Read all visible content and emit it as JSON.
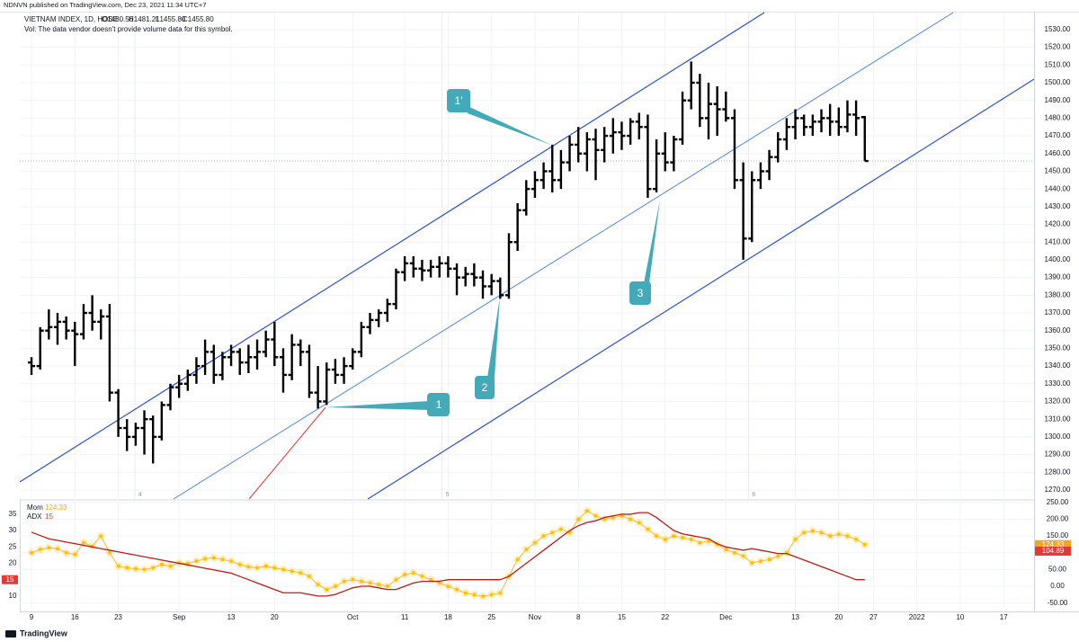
{
  "header": "NDNVN published on TradingView.com, Dec 23, 2021 11:34 UTC+7",
  "footer": "TradingView",
  "chart_data": [
    {
      "type": "ohlc",
      "title": "VIETNAM INDEX, 1D, HOSE",
      "ohlc_labels": [
        "O1480.56",
        "H1481.21",
        "L1455.80",
        "C1455.80"
      ],
      "note": "Vol: The data vendor doesn't provide volume data for this symbol.",
      "color": "#000000",
      "x": [
        0,
        1,
        2,
        3,
        4,
        5,
        6,
        7,
        8,
        9,
        10,
        11,
        12,
        13,
        14,
        15,
        16,
        17,
        18,
        19,
        20,
        21,
        22,
        23,
        24,
        25,
        26,
        27,
        28,
        29,
        30,
        31,
        32,
        33,
        34,
        35,
        36,
        37,
        38,
        39,
        40,
        41,
        42,
        43,
        44,
        45,
        46,
        47,
        48,
        49,
        50,
        51,
        52,
        53,
        54,
        55,
        56,
        57,
        58,
        59,
        60,
        61,
        62,
        63,
        64,
        65,
        66,
        67,
        68,
        69,
        70,
        71,
        72,
        73,
        74,
        75,
        76,
        77,
        78,
        79,
        80,
        81,
        82,
        83,
        84,
        85,
        86,
        87,
        88,
        89,
        90,
        91,
        92,
        93,
        94,
        95,
        96
      ],
      "open": [
        1342,
        1340,
        1360,
        1362,
        1365,
        1360,
        1358,
        1370,
        1365,
        1368,
        1325,
        1305,
        1300,
        1305,
        1310,
        1300,
        1318,
        1328,
        1330,
        1335,
        1340,
        1348,
        1335,
        1345,
        1348,
        1342,
        1345,
        1348,
        1355,
        1345,
        1335,
        1352,
        1348,
        1325,
        1320,
        1338,
        1335,
        1340,
        1348,
        1362,
        1366,
        1370,
        1375,
        1393,
        1398,
        1395,
        1394,
        1396,
        1398,
        1395,
        1390,
        1392,
        1390,
        1385,
        1388,
        1380,
        1410,
        1428,
        1440,
        1445,
        1450,
        1445,
        1455,
        1465,
        1460,
        1468,
        1462,
        1470,
        1472,
        1470,
        1478,
        1475,
        1440,
        1460,
        1455,
        1468,
        1490,
        1500,
        1480,
        1488,
        1485,
        1480,
        1445,
        1412,
        1445,
        1450,
        1458,
        1468,
        1475,
        1480,
        1475,
        1478,
        1480,
        1478,
        1475,
        1482,
        1480.56
      ],
      "high": [
        1345,
        1362,
        1372,
        1370,
        1368,
        1365,
        1375,
        1380,
        1372,
        1375,
        1327,
        1310,
        1308,
        1315,
        1312,
        1320,
        1330,
        1335,
        1338,
        1345,
        1355,
        1352,
        1348,
        1352,
        1350,
        1352,
        1355,
        1360,
        1365,
        1350,
        1358,
        1355,
        1352,
        1340,
        1342,
        1344,
        1345,
        1350,
        1365,
        1370,
        1372,
        1378,
        1395,
        1402,
        1402,
        1400,
        1400,
        1402,
        1402,
        1398,
        1396,
        1398,
        1394,
        1392,
        1390,
        1415,
        1432,
        1445,
        1450,
        1455,
        1465,
        1462,
        1470,
        1475,
        1472,
        1474,
        1475,
        1480,
        1478,
        1480,
        1483,
        1482,
        1468,
        1472,
        1470,
        1495,
        1512,
        1505,
        1500,
        1498,
        1495,
        1485,
        1455,
        1450,
        1455,
        1462,
        1472,
        1480,
        1485,
        1482,
        1482,
        1485,
        1488,
        1486,
        1490,
        1490,
        1481.21
      ],
      "low": [
        1335,
        1338,
        1355,
        1352,
        1355,
        1340,
        1355,
        1360,
        1355,
        1320,
        1300,
        1292,
        1295,
        1290,
        1285,
        1298,
        1315,
        1322,
        1326,
        1330,
        1335,
        1330,
        1332,
        1340,
        1335,
        1336,
        1338,
        1345,
        1340,
        1325,
        1332,
        1340,
        1322,
        1316,
        1318,
        1330,
        1330,
        1338,
        1345,
        1358,
        1362,
        1365,
        1372,
        1388,
        1390,
        1388,
        1390,
        1390,
        1390,
        1380,
        1385,
        1385,
        1378,
        1380,
        1378,
        1378,
        1405,
        1425,
        1435,
        1440,
        1438,
        1440,
        1450,
        1455,
        1450,
        1445,
        1455,
        1460,
        1462,
        1465,
        1468,
        1435,
        1438,
        1450,
        1450,
        1465,
        1485,
        1475,
        1468,
        1470,
        1478,
        1440,
        1400,
        1410,
        1440,
        1445,
        1455,
        1462,
        1468,
        1470,
        1470,
        1472,
        1470,
        1470,
        1472,
        1470,
        1455.8
      ],
      "close": [
        1340,
        1360,
        1362,
        1365,
        1360,
        1358,
        1370,
        1365,
        1368,
        1325,
        1305,
        1300,
        1305,
        1310,
        1300,
        1318,
        1328,
        1330,
        1335,
        1340,
        1348,
        1335,
        1345,
        1348,
        1342,
        1345,
        1348,
        1355,
        1345,
        1335,
        1352,
        1348,
        1325,
        1320,
        1338,
        1335,
        1340,
        1348,
        1362,
        1366,
        1370,
        1375,
        1393,
        1398,
        1395,
        1394,
        1396,
        1398,
        1395,
        1390,
        1392,
        1390,
        1385,
        1388,
        1380,
        1410,
        1428,
        1440,
        1445,
        1450,
        1445,
        1455,
        1465,
        1460,
        1468,
        1462,
        1470,
        1472,
        1470,
        1478,
        1475,
        1440,
        1460,
        1455,
        1468,
        1490,
        1500,
        1480,
        1488,
        1485,
        1480,
        1445,
        1412,
        1445,
        1450,
        1458,
        1468,
        1475,
        1480,
        1475,
        1478,
        1480,
        1478,
        1475,
        1482,
        1480,
        1455.8
      ],
      "xlim": [
        -1.35,
        115.5
      ],
      "xticks": [
        {
          "value": 0,
          "label": "9"
        },
        {
          "value": 5,
          "label": "16"
        },
        {
          "value": 10,
          "label": "23"
        },
        {
          "value": 17,
          "label": "Sep"
        },
        {
          "value": 23,
          "label": "13"
        },
        {
          "value": 28,
          "label": "20"
        },
        {
          "value": 37,
          "label": "Oct"
        },
        {
          "value": 43,
          "label": "11"
        },
        {
          "value": 48,
          "label": "18"
        },
        {
          "value": 53,
          "label": "25"
        },
        {
          "value": 58,
          "label": "Nov"
        },
        {
          "value": 63,
          "label": "8"
        },
        {
          "value": 68,
          "label": "15"
        },
        {
          "value": 73,
          "label": "22"
        },
        {
          "value": 80,
          "label": "Dec"
        },
        {
          "value": 88,
          "label": "13"
        },
        {
          "value": 93,
          "label": "20"
        },
        {
          "value": 97,
          "label": "27"
        },
        {
          "value": 102,
          "label": "2022"
        },
        {
          "value": 107,
          "label": "10"
        },
        {
          "value": 112,
          "label": "17"
        }
      ],
      "ylim": [
        1264.9,
        1539.6
      ],
      "yticks": [
        {
          "value": 1270,
          "label": "1270.00"
        },
        {
          "value": 1280,
          "label": "1280.00"
        },
        {
          "value": 1290,
          "label": "1290.00"
        },
        {
          "value": 1300,
          "label": "1300.00"
        },
        {
          "value": 1310,
          "label": "1310.00"
        },
        {
          "value": 1320,
          "label": "1320.00"
        },
        {
          "value": 1330,
          "label": "1330.00"
        },
        {
          "value": 1340,
          "label": "1340.00"
        },
        {
          "value": 1350,
          "label": "1350.00"
        },
        {
          "value": 1360,
          "label": "1360.00"
        },
        {
          "value": 1370,
          "label": "1370.00"
        },
        {
          "value": 1380,
          "label": "1380.00"
        },
        {
          "value": 1390,
          "label": "1390.00"
        },
        {
          "value": 1400,
          "label": "1400.00"
        },
        {
          "value": 1410,
          "label": "1410.00"
        },
        {
          "value": 1420,
          "label": "1420.00"
        },
        {
          "value": 1430,
          "label": "1430.00"
        },
        {
          "value": 1440,
          "label": "1440.00"
        },
        {
          "value": 1450,
          "label": "1450.00"
        },
        {
          "value": 1460,
          "label": "1460.00"
        },
        {
          "value": 1470,
          "label": "1470.00"
        },
        {
          "value": 1480,
          "label": "1480.00"
        },
        {
          "value": 1490,
          "label": "1490.00"
        },
        {
          "value": 1500,
          "label": "1500.00"
        },
        {
          "value": 1510,
          "label": "1510.00"
        },
        {
          "value": 1520,
          "label": "1520.00"
        },
        {
          "value": 1530,
          "label": "1530.00"
        }
      ],
      "session_breaks": [
        {
          "value": 11.9,
          "label": "4"
        },
        {
          "value": 47.3,
          "label": "5"
        },
        {
          "value": 82.6,
          "label": "6"
        }
      ],
      "annotations": [
        "1'",
        "1",
        "2",
        "3"
      ]
    },
    {
      "type": "line",
      "series": [
        {
          "name": "Mom",
          "color": "#f5a623",
          "axis": "y2",
          "legend_value": "124.33",
          "values": [
            100,
            110,
            115,
            112,
            100,
            95,
            130,
            120,
            150,
            100,
            60,
            55,
            52,
            50,
            55,
            65,
            60,
            70,
            68,
            75,
            82,
            85,
            80,
            75,
            65,
            58,
            55,
            60,
            55,
            50,
            45,
            40,
            30,
            5,
            -10,
            0,
            15,
            20,
            15,
            10,
            5,
            0,
            20,
            35,
            40,
            30,
            20,
            10,
            0,
            -10,
            -20,
            -25,
            -30,
            -25,
            -20,
            30,
            80,
            110,
            130,
            150,
            160,
            170,
            160,
            200,
            225,
            210,
            200,
            205,
            210,
            200,
            190,
            170,
            150,
            140,
            150,
            145,
            140,
            130,
            135,
            125,
            110,
            100,
            90,
            70,
            75,
            80,
            90,
            100,
            140,
            160,
            165,
            160,
            150,
            155,
            150,
            140,
            124.33
          ]
        },
        {
          "name": "ADX",
          "color": "#b71c1c",
          "legend_value": "15",
          "values": [
            29.5,
            28.5,
            27.5,
            27,
            26.5,
            26,
            25.5,
            25,
            24.5,
            24,
            23.5,
            23,
            22.5,
            22,
            21.5,
            21,
            20.5,
            20,
            19.5,
            19,
            18.5,
            18,
            17.5,
            17,
            16,
            15,
            14,
            13,
            12,
            11,
            11,
            11,
            10.5,
            10,
            10,
            10.5,
            11.5,
            12.5,
            13,
            13,
            12.5,
            12,
            12,
            13,
            14,
            14.5,
            14.5,
            14.5,
            15,
            15,
            15,
            15,
            15,
            15,
            15,
            16,
            18,
            20,
            22,
            24,
            26,
            28,
            30,
            31.5,
            32.5,
            33,
            34,
            34.5,
            35,
            35,
            35.5,
            35.5,
            34,
            32,
            30,
            29,
            28.5,
            28,
            27.5,
            26,
            25,
            24.5,
            24,
            24.5,
            24,
            23.5,
            23,
            23,
            22,
            21,
            20,
            19,
            18,
            17,
            16,
            15,
            15
          ]
        }
      ],
      "ylim": [
        5.3,
        39.1
      ],
      "yticks": [
        10,
        15,
        20,
        25,
        30,
        35
      ],
      "y2lim": [
        -75,
        255
      ],
      "y2ticks": [
        {
          "value": 250,
          "label": "250.00"
        },
        {
          "value": 200,
          "label": "200.00"
        },
        {
          "value": 150,
          "label": "150.00"
        },
        {
          "value": 100,
          "label": "100.00"
        },
        {
          "value": 50,
          "label": "50.00"
        },
        {
          "value": 0,
          "label": "0.00"
        },
        {
          "value": -50,
          "label": "-50.00"
        }
      ],
      "y2_badges": [
        {
          "value": 124.33,
          "label": "124.33",
          "color": "#f5a623"
        },
        {
          "value": 104.89,
          "label": "104.89",
          "color": "#e53935"
        }
      ],
      "y_badge": {
        "value": 15,
        "label": "15",
        "color": "#e53935"
      }
    }
  ]
}
